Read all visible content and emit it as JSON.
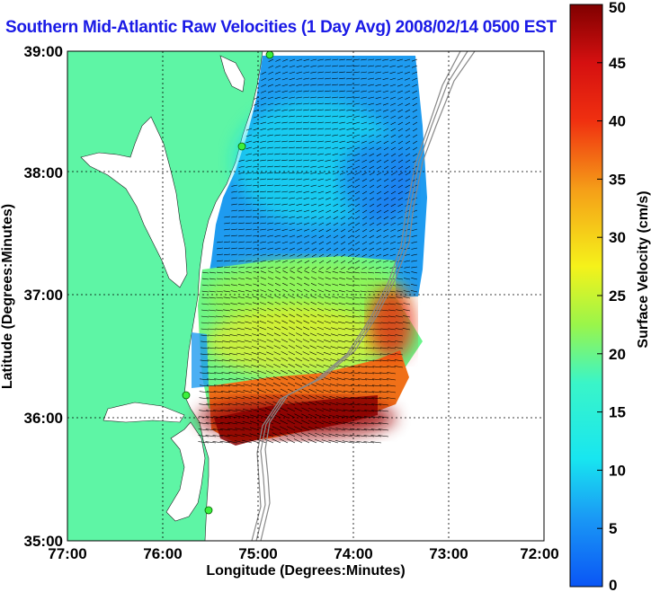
{
  "title": "Southern Mid-Atlantic Raw Velocities (1 Day Avg) 2008/02/14 0500 EST",
  "map": {
    "xlabel": "Longitude (Degrees:Minutes)",
    "ylabel": "Latitude (Degrees:Minutes)",
    "x_ticks": [
      "77:00",
      "76:00",
      "75:00",
      "74:00",
      "73:00",
      "72:00"
    ],
    "y_ticks": [
      "39:00",
      "38:00",
      "37:00",
      "36:00",
      "35:00"
    ],
    "lon_range": [
      -77,
      -72
    ],
    "lat_range": [
      35,
      39
    ],
    "land_color": "#5ef5a5",
    "ocean_color": "#ffffff"
  },
  "colorbar": {
    "label": "Surface Velocity (cm/s)",
    "ticks": [
      "0",
      "5",
      "10",
      "15",
      "20",
      "25",
      "30",
      "35",
      "40",
      "45",
      "50"
    ],
    "range": [
      0,
      50
    ],
    "colormap": "jet"
  }
}
